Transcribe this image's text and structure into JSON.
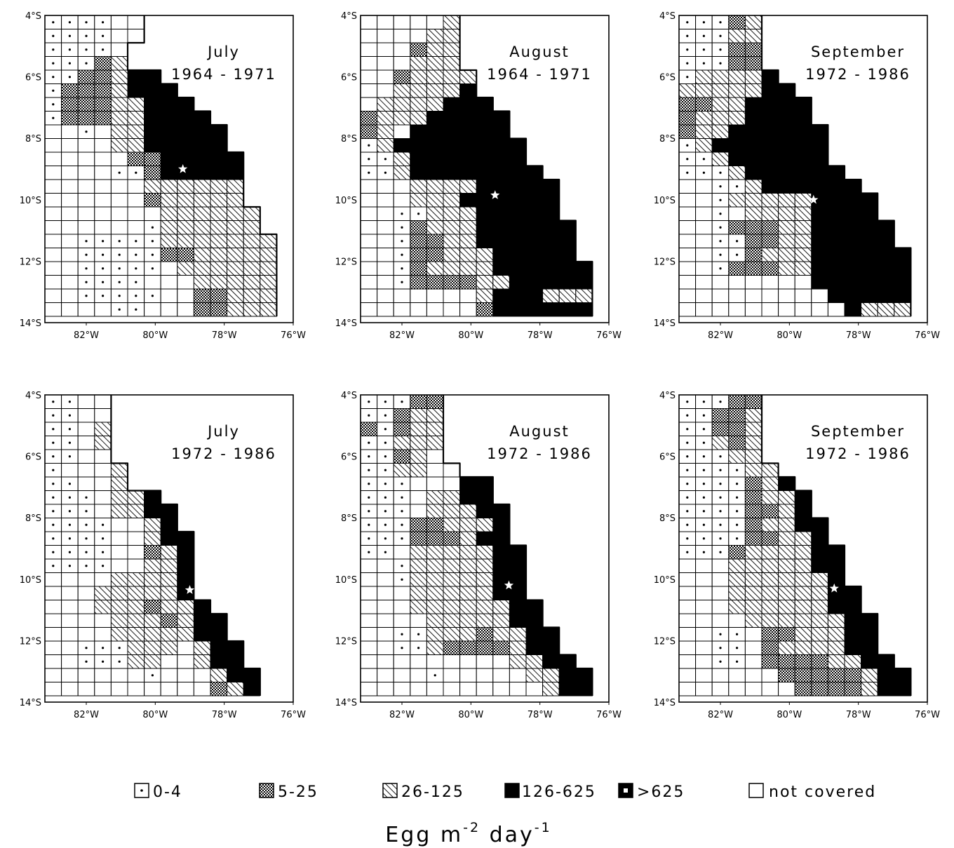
{
  "chart_data": [
    {
      "type": "heatmap",
      "title": [
        "July",
        "1964 - 1971"
      ],
      "xticks": [
        "82°W",
        "80°W",
        "78°W",
        "76°W"
      ],
      "yticks": [
        "4°S",
        "6°S",
        "8°S",
        "10°S",
        "12°S",
        "14°S"
      ],
      "xlim": [
        -83.2,
        -76
      ],
      "ylim": [
        4,
        14
      ],
      "cell_size_deg": 0.5,
      "star": {
        "lon": -79.2,
        "lat": 9.0
      },
      "grid": [
        "d d d d o o X X X X X X X X",
        "d d d d o o X X X X X X X X",
        "d d d d o X X X X X X X X X",
        "d d d m h X X X X X X X X X",
        "d d m m h L L X X X X X X X",
        "d m m m h L L L X X X X X X",
        "d m m m h h L L L X X X X X",
        "d m m m h h L L L L X X X X",
        "o o d o h h L L L L L X X X",
        "o o o o h h L L L L L X X X",
        "o o o o o m m L L L L L X X",
        "o o o o d d m L L L L L X X",
        "o o o o o o h h h h h h X X",
        "o o o o o o m h h h h h X X",
        "o o o o o o o h h h h h h X",
        "o o o o o o d h h h h h h X",
        "o o d d d d d h h h h h h h",
        "o o d d d d d m m h h h h h",
        "o o d d d d d o h h h h h h",
        "o o d d d d o o o h h h h h",
        "o o d d d d d o o m m h h h",
        "o o o o d d o o o m m h h h"
      ]
    },
    {
      "type": "heatmap",
      "title": [
        "August",
        "1964 - 1971"
      ],
      "xticks": [
        "82°W",
        "80°W",
        "78°W",
        "76°W"
      ],
      "yticks": [
        "4°S",
        "6°S",
        "8°S",
        "10°S",
        "12°S",
        "14°S"
      ],
      "xlim": [
        -83.2,
        -76
      ],
      "ylim": [
        4,
        14
      ],
      "cell_size_deg": 0.5,
      "star": {
        "lon": -79.3,
        "lat": 9.85
      },
      "grid": [
        "o o o o o h X X X X X X X X",
        "o o o o h h X X X X X X X X",
        "o o o m h h X X X X X X X X",
        "o o o h h h X X X X X X X X",
        "o o m h h h h X X X X X X X",
        "o o h h h h L X X X X X X X",
        "o h h h h L L L X X X X X X",
        "m h h h L L L L L X X X X X",
        "m h o L L L L L L X X X X X",
        "d h L L L L L L L L X X X X",
        "d d h L L L L L L L X X X X",
        "d d h L L L L L L L L X X X",
        "o o o h h h h L L L L L X X",
        "o o o h h h L L L L L L X X",
        "o o d d h h h L L L L L X X",
        "o o d m h h h L L L L L L X",
        "o o d m m h h L L L L L L X",
        "o o d m m h h h L L L L L X",
        "o o d m h h h h L L L L L L",
        "o o d m m m m h h L L L L L",
        "o o o o o o o h L L L h h h",
        "o o o o o o o m L L L L L L"
      ]
    },
    {
      "type": "heatmap",
      "title": [
        "September",
        "1972 - 1986"
      ],
      "xticks": [
        "82°W",
        "80°W",
        "78°W",
        "76°W"
      ],
      "yticks": [
        "4°S",
        "6°S",
        "8°S",
        "10°S",
        "12°S",
        "14°S"
      ],
      "xlim": [
        -83.2,
        -76
      ],
      "ylim": [
        4,
        14
      ],
      "cell_size_deg": 0.5,
      "star": {
        "lon": -79.3,
        "lat": 10.0
      },
      "grid": [
        "d d d m h X X X X X X X X X",
        "d d d h h X X X X X X X X X",
        "d d d m m X X X X X X X X X",
        "d d d m m X X X X X X X X X",
        "d h h h h L X X X X X X X X",
        "h h h h h L L X X X X X X X",
        "m m h h L L L L X X X X X X",
        "m h h h L L L L X X X X X X",
        "m h h L L L L L L X X X X X",
        "d h L L L L L L L X X X X X",
        "d d h L L L L L L X X X X X",
        "d d d h L L L L L L X X X X",
        "o o d d h L L L L L L X X X",
        "o o d h h h h h L L L L X X",
        "o o d o h h h h L L L L X X",
        "o o d m m m h h L L L L L X",
        "o o d d m m h h L L L L L X",
        "o o d d m h h h L L L L L L",
        "o o d m m m h h L L L L L L",
        "o o o o o o o o L L L L L L",
        "o o o o o o o o o L L L L L",
        "o o o o o o o o o o L h h h"
      ]
    },
    {
      "type": "heatmap",
      "title": [
        "July",
        "1972 - 1986"
      ],
      "xticks": [
        "82°W",
        "80°W",
        "78°W",
        "76°W"
      ],
      "yticks": [
        "4°S",
        "6°S",
        "8°S",
        "10°S",
        "12°S",
        "14°S"
      ],
      "xlim": [
        -83.2,
        -76
      ],
      "ylim": [
        4,
        14
      ],
      "cell_size_deg": 0.5,
      "star": {
        "lon": -79.0,
        "lat": 10.35
      },
      "grid": [
        "d d o o X X X X X X X X X X",
        "d d o o X X X X X X X X X X",
        "d d o h X X X X X X X X X X",
        "d d o h X X X X X X X X X X",
        "d d o o X X X X X X X X X X",
        "d o o o h X X X X X X X X X",
        "d d o o h X X X X X X X X X",
        "d d d o h h L X X X X X X X",
        "d d d o h h L L X X X X X X",
        "d d d d o o h L X X X X X X",
        "d d d d o o h L L X X X X X",
        "d d d d o o m h L X X X X X",
        "d d d d o o h h L X X X X X",
        "o o o o h h h h L X X X X X",
        "o o o h h h h h L X X X X X",
        "o o o h h h m h h L X X X X",
        "o o o o h h h m h L L X X X",
        "o o o o h h h h h L L X X X",
        "o o d d d h h h o h L L X X",
        "o o d d d h h o o h L L X X",
        "o o o o o o d o o o h L L X",
        "o o o o o o o o o o m h L X"
      ]
    },
    {
      "type": "heatmap",
      "title": [
        "August",
        "1972 - 1986"
      ],
      "xticks": [
        "82°W",
        "80°W",
        "78°W",
        "76°W"
      ],
      "yticks": [
        "4°S",
        "6°S",
        "8°S",
        "10°S",
        "12°S",
        "14°S"
      ],
      "xlim": [
        -83.2,
        -76
      ],
      "ylim": [
        4,
        14
      ],
      "cell_size_deg": 0.5,
      "star": {
        "lon": -78.9,
        "lat": 10.2
      },
      "grid": [
        "d d d m m X X X X X X X X X",
        "d d m h h X X X X X X X X X",
        "m d m h h X X X X X X X X X",
        "d d h h h X X X X X X X X X",
        "d d m h o X X X X X X X X X",
        "d d h h o o X X X X X X X X",
        "d d d o o o L L X X X X X X",
        "d d d o h h L L X X X X X X",
        "d d d o h h h L L X X X X X",
        "d d d m m h h h L X X X X X",
        "d d d m m m h L L X X X X X",
        "d d o h h h h h L L X X X X",
        "o o d h h h h h L L X X X X",
        "o o d h h h h h L L X X X X",
        "o o o h h h h h L L X X X X",
        "o o o h h h h h h L L X X X",
        "o o o o h h h h h L L X X X",
        "o o d d h h h m h h L L X X",
        "o o d d h m m m m h L L X X",
        "o o o o o o o o o h h L L X",
        "o o o o d o o o o o h h L L",
        "o o o o o o o o o o o h L L"
      ]
    },
    {
      "type": "heatmap",
      "title": [
        "September",
        "1972 - 1986"
      ],
      "xticks": [
        "82°W",
        "80°W",
        "78°W",
        "76°W"
      ],
      "yticks": [
        "4°S",
        "6°S",
        "8°S",
        "10°S",
        "12°S",
        "14°S"
      ],
      "xlim": [
        -83.2,
        -76
      ],
      "ylim": [
        4,
        14
      ],
      "cell_size_deg": 0.5,
      "star": {
        "lon": -78.7,
        "lat": 10.3
      },
      "grid": [
        "d d d m m X X X X X X X X X",
        "d d m m h X X X X X X X X X",
        "d d m m h X X X X X X X X X",
        "d d h m h X X X X X X X X X",
        "d d d h h X X X X X X X X X",
        "d d d d h h X X X X X X X X",
        "d d d d m h L X X X X X X X",
        "d d d d m h h L X X X X X X",
        "d d d d m m h L X X X X X X",
        "d d d d m h h L L X X X X X",
        "d d d d m m h h L X X X X X",
        "d d d m h h h h L L X X X X",
        "o o o h h h h h L L X X X X",
        "o o o h h h h h h L X X X X",
        "o o o h h h h h h L L X X X",
        "o o o h h h h h h L L X X X",
        "o o o o h h h h h h L L X X",
        "o o d d o m m h h h L L X X",
        "o o d d o m h h h h L L X X",
        "o o d d o m m m m h h L L X",
        "o o o o o o m m m m m h L L",
        "o o o o o o o m m m m h L L"
      ]
    }
  ],
  "legend": {
    "items": [
      {
        "key": "d",
        "label": "0-4"
      },
      {
        "key": "m",
        "label": "5-25"
      },
      {
        "key": "h",
        "label": "26-125"
      },
      {
        "key": "L",
        "label": "126-625"
      },
      {
        "key": "P",
        "label": ">625"
      },
      {
        "key": "o",
        "label": "not covered"
      }
    ],
    "units": {
      "prefix": "Egg m",
      "exp1": "-2",
      "mid": " day",
      "exp2": "-1"
    }
  },
  "colors": {
    "ink": "#000000",
    "paper": "#ffffff"
  }
}
